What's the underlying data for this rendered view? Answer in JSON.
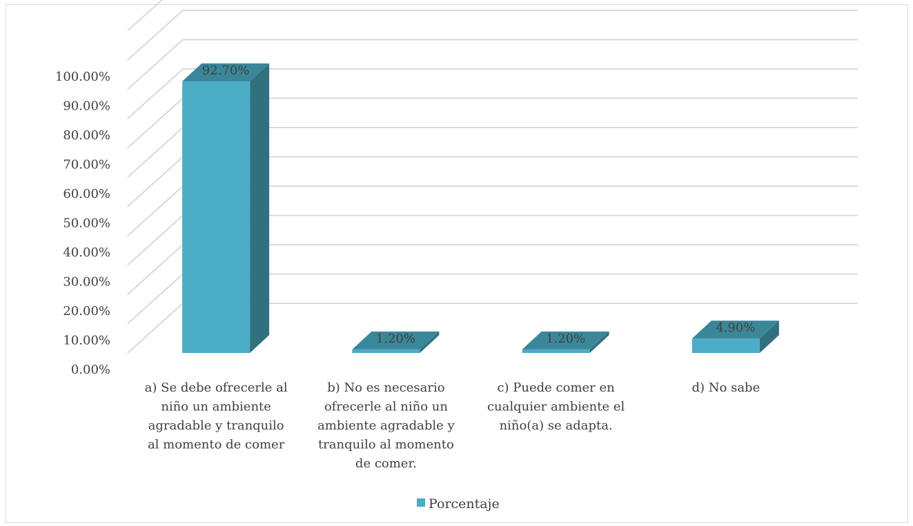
{
  "chart_data": {
    "type": "bar",
    "style": "3d-column",
    "categories": [
      [
        "a) Se debe ofrecerle al",
        "niño un ambiente",
        "agradable y tranquilo",
        "al momento de comer"
      ],
      [
        "b) No es necesario",
        "ofrecerle al niño un",
        "ambiente agradable y",
        "tranquilo al momento",
        "de comer."
      ],
      [
        "c) Puede comer en",
        "cualquier ambiente el",
        "niño(a) se adapta."
      ],
      [
        "d) No sabe"
      ]
    ],
    "series": [
      {
        "name": "Porcentaje",
        "values": [
          92.7,
          1.2,
          1.2,
          4.9
        ],
        "labels": [
          "92.70%",
          "1.20%",
          "1.20%",
          "4.90%"
        ]
      }
    ],
    "ylim": [
      0,
      100
    ],
    "yticks": [
      "0.00%",
      "10.00%",
      "20.00%",
      "30.00%",
      "40.00%",
      "50.00%",
      "60.00%",
      "70.00%",
      "80.00%",
      "90.00%",
      "100.00%"
    ],
    "grid": true,
    "legend": "bottom-center",
    "colors": {
      "front": "#4bacc6",
      "side": "#31707f",
      "top": "#3a8799",
      "grid": "#d9d9d9",
      "text": "#404040"
    }
  }
}
